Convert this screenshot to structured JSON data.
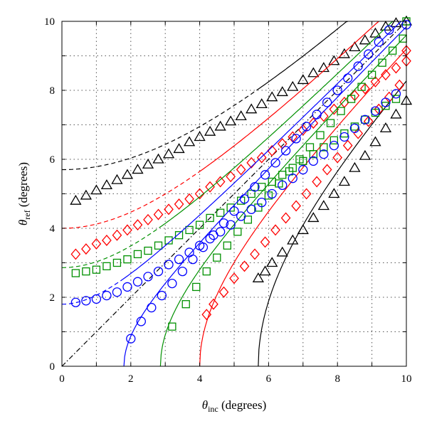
{
  "chart_data": {
    "type": "line",
    "xlabel": {
      "symbol": "θ",
      "sub": "inc",
      "suffix": " (degrees)"
    },
    "ylabel": {
      "symbol": "θ",
      "sub": "ref",
      "suffix": " (degrees)"
    },
    "xlim": [
      0,
      10
    ],
    "ylim": [
      0,
      10
    ],
    "x_ticks": [
      "0",
      "2",
      "4",
      "6",
      "8",
      "10"
    ],
    "y_ticks": [
      "0",
      "2",
      "4",
      "6",
      "8",
      "10"
    ],
    "grid": "dotted",
    "legend": "none",
    "reference_line": {
      "style": "dash-dot",
      "color": "#000000",
      "from": [
        0,
        0
      ],
      "to": [
        10,
        10
      ]
    },
    "series": [
      {
        "color": "#000000",
        "marker": "triangle",
        "critical_angle": 5.7,
        "upper_points": [
          [
            0.4,
            4.8
          ],
          [
            0.7,
            4.95
          ],
          [
            1.0,
            5.1
          ],
          [
            1.3,
            5.25
          ],
          [
            1.6,
            5.4
          ],
          [
            1.9,
            5.55
          ],
          [
            2.2,
            5.7
          ],
          [
            2.5,
            5.85
          ],
          [
            2.8,
            6.0
          ],
          [
            3.1,
            6.15
          ],
          [
            3.4,
            6.3
          ],
          [
            3.7,
            6.5
          ],
          [
            4.0,
            6.65
          ],
          [
            4.3,
            6.8
          ],
          [
            4.6,
            6.95
          ],
          [
            4.9,
            7.1
          ],
          [
            5.2,
            7.25
          ],
          [
            5.5,
            7.45
          ],
          [
            5.8,
            7.6
          ],
          [
            6.1,
            7.8
          ],
          [
            6.4,
            7.95
          ],
          [
            6.7,
            8.1
          ],
          [
            7.0,
            8.3
          ],
          [
            7.3,
            8.5
          ],
          [
            7.6,
            8.65
          ],
          [
            7.9,
            8.85
          ],
          [
            8.2,
            9.05
          ],
          [
            8.5,
            9.25
          ],
          [
            8.8,
            9.45
          ],
          [
            9.1,
            9.65
          ],
          [
            9.4,
            9.85
          ],
          [
            9.7,
            9.95
          ],
          [
            10.0,
            10.0
          ]
        ],
        "lower_points": [
          [
            5.7,
            2.55
          ],
          [
            5.9,
            2.75
          ],
          [
            6.1,
            3.0
          ],
          [
            6.4,
            3.3
          ],
          [
            6.7,
            3.65
          ],
          [
            7.0,
            3.95
          ],
          [
            7.3,
            4.3
          ],
          [
            7.6,
            4.65
          ],
          [
            7.9,
            5.0
          ],
          [
            8.2,
            5.35
          ],
          [
            8.5,
            5.75
          ],
          [
            8.8,
            6.1
          ],
          [
            9.1,
            6.5
          ],
          [
            9.4,
            6.9
          ],
          [
            9.7,
            7.3
          ],
          [
            10.0,
            7.7
          ]
        ]
      },
      {
        "color": "#ff0000",
        "marker": "diamond",
        "critical_angle": 4.0,
        "upper_points": [
          [
            0.4,
            3.25
          ],
          [
            0.7,
            3.4
          ],
          [
            1.0,
            3.55
          ],
          [
            1.3,
            3.65
          ],
          [
            1.6,
            3.8
          ],
          [
            1.9,
            3.95
          ],
          [
            2.2,
            4.1
          ],
          [
            2.5,
            4.25
          ],
          [
            2.8,
            4.4
          ],
          [
            3.1,
            4.55
          ],
          [
            3.4,
            4.7
          ],
          [
            3.7,
            4.85
          ],
          [
            4.0,
            5.0
          ],
          [
            4.3,
            5.2
          ],
          [
            4.6,
            5.35
          ],
          [
            4.9,
            5.5
          ],
          [
            5.2,
            5.7
          ],
          [
            5.5,
            5.9
          ],
          [
            5.8,
            6.05
          ],
          [
            6.1,
            6.25
          ],
          [
            6.4,
            6.45
          ],
          [
            6.7,
            6.65
          ],
          [
            7.0,
            6.85
          ],
          [
            7.3,
            7.05
          ],
          [
            7.6,
            7.25
          ],
          [
            7.9,
            7.45
          ],
          [
            8.2,
            7.65
          ],
          [
            8.5,
            7.85
          ],
          [
            8.8,
            8.05
          ],
          [
            9.1,
            8.25
          ],
          [
            9.4,
            8.45
          ],
          [
            9.7,
            8.65
          ],
          [
            10.0,
            8.85
          ]
        ],
        "lower_points": [
          [
            4.2,
            1.5
          ],
          [
            4.4,
            1.8
          ],
          [
            4.7,
            2.15
          ],
          [
            5.0,
            2.55
          ],
          [
            5.3,
            2.9
          ],
          [
            5.6,
            3.25
          ],
          [
            5.9,
            3.6
          ],
          [
            6.2,
            3.95
          ],
          [
            6.5,
            4.3
          ],
          [
            6.8,
            4.65
          ],
          [
            7.1,
            5.0
          ],
          [
            7.4,
            5.35
          ],
          [
            7.7,
            5.7
          ],
          [
            8.0,
            6.05
          ],
          [
            8.3,
            6.4
          ],
          [
            8.6,
            6.75
          ],
          [
            8.9,
            7.1
          ],
          [
            9.2,
            7.45
          ],
          [
            9.5,
            7.8
          ],
          [
            9.8,
            8.15
          ],
          [
            10.0,
            9.15
          ]
        ]
      },
      {
        "color": "#009000",
        "marker": "square",
        "critical_angle": 2.86,
        "upper_points": [
          [
            0.4,
            2.7
          ],
          [
            0.7,
            2.75
          ],
          [
            1.0,
            2.8
          ],
          [
            1.3,
            2.9
          ],
          [
            1.6,
            3.0
          ],
          [
            1.9,
            3.1
          ],
          [
            2.2,
            3.25
          ],
          [
            2.5,
            3.35
          ],
          [
            2.8,
            3.5
          ],
          [
            3.1,
            3.65
          ],
          [
            3.4,
            3.8
          ],
          [
            3.7,
            3.95
          ],
          [
            4.0,
            4.1
          ],
          [
            4.3,
            4.3
          ],
          [
            4.6,
            4.45
          ],
          [
            4.9,
            4.6
          ],
          [
            5.2,
            4.8
          ],
          [
            5.5,
            5.0
          ],
          [
            5.8,
            5.2
          ],
          [
            6.1,
            5.35
          ],
          [
            6.4,
            5.55
          ],
          [
            6.7,
            5.75
          ],
          [
            7.0,
            5.95
          ],
          [
            7.3,
            6.15
          ],
          [
            7.6,
            6.35
          ],
          [
            7.9,
            6.55
          ],
          [
            8.2,
            6.75
          ],
          [
            8.5,
            6.95
          ],
          [
            8.8,
            7.15
          ],
          [
            9.1,
            7.35
          ],
          [
            9.4,
            7.55
          ],
          [
            9.7,
            7.75
          ],
          [
            10.0,
            10.0
          ]
        ],
        "lower_points": [
          [
            3.2,
            1.15
          ],
          [
            3.6,
            1.8
          ],
          [
            3.9,
            2.3
          ],
          [
            4.2,
            2.75
          ],
          [
            4.5,
            3.15
          ],
          [
            4.8,
            3.5
          ],
          [
            5.1,
            3.9
          ],
          [
            5.4,
            4.25
          ],
          [
            5.7,
            4.6
          ],
          [
            6.0,
            4.95
          ],
          [
            6.3,
            5.3
          ],
          [
            6.6,
            5.65
          ],
          [
            6.9,
            6.0
          ],
          [
            7.2,
            6.35
          ],
          [
            7.5,
            6.7
          ],
          [
            7.8,
            7.05
          ],
          [
            8.1,
            7.4
          ],
          [
            8.4,
            7.75
          ],
          [
            8.7,
            8.1
          ],
          [
            9.0,
            8.45
          ],
          [
            9.3,
            8.8
          ],
          [
            9.6,
            9.15
          ],
          [
            9.9,
            9.5
          ]
        ]
      },
      {
        "color": "#0000ff",
        "marker": "circle",
        "critical_angle": 1.8,
        "upper_points": [
          [
            0.4,
            1.85
          ],
          [
            0.7,
            1.9
          ],
          [
            1.0,
            1.95
          ],
          [
            1.3,
            2.05
          ],
          [
            1.6,
            2.15
          ],
          [
            1.9,
            2.3
          ],
          [
            2.2,
            2.45
          ],
          [
            2.5,
            2.6
          ],
          [
            2.8,
            2.75
          ],
          [
            3.1,
            2.95
          ],
          [
            3.4,
            3.1
          ],
          [
            3.7,
            3.3
          ],
          [
            4.0,
            3.5
          ],
          [
            4.3,
            3.7
          ],
          [
            4.6,
            3.9
          ],
          [
            4.9,
            4.1
          ],
          [
            5.2,
            4.35
          ],
          [
            5.5,
            4.55
          ],
          [
            5.8,
            4.75
          ],
          [
            6.1,
            5.0
          ],
          [
            6.4,
            5.25
          ],
          [
            6.7,
            5.45
          ],
          [
            7.0,
            5.7
          ],
          [
            7.3,
            5.95
          ],
          [
            7.6,
            6.15
          ],
          [
            7.9,
            6.4
          ],
          [
            8.2,
            6.65
          ],
          [
            8.5,
            6.9
          ],
          [
            8.8,
            7.15
          ],
          [
            9.1,
            7.4
          ],
          [
            9.4,
            7.65
          ],
          [
            9.7,
            7.9
          ],
          [
            10.0,
            9.9
          ]
        ],
        "lower_points": [
          [
            2.0,
            0.8
          ],
          [
            2.3,
            1.3
          ],
          [
            2.6,
            1.7
          ],
          [
            2.9,
            2.05
          ],
          [
            3.2,
            2.4
          ],
          [
            3.5,
            2.75
          ],
          [
            3.8,
            3.1
          ],
          [
            4.1,
            3.45
          ],
          [
            4.4,
            3.8
          ],
          [
            4.7,
            4.15
          ],
          [
            5.0,
            4.5
          ],
          [
            5.3,
            4.85
          ],
          [
            5.6,
            5.2
          ],
          [
            5.9,
            5.55
          ],
          [
            6.2,
            5.9
          ],
          [
            6.5,
            6.25
          ],
          [
            6.8,
            6.6
          ],
          [
            7.1,
            6.95
          ],
          [
            7.4,
            7.3
          ],
          [
            7.7,
            7.65
          ],
          [
            8.0,
            8.0
          ],
          [
            8.3,
            8.35
          ],
          [
            8.6,
            8.7
          ],
          [
            8.9,
            9.05
          ],
          [
            9.2,
            9.4
          ],
          [
            9.5,
            9.75
          ]
        ]
      }
    ]
  }
}
